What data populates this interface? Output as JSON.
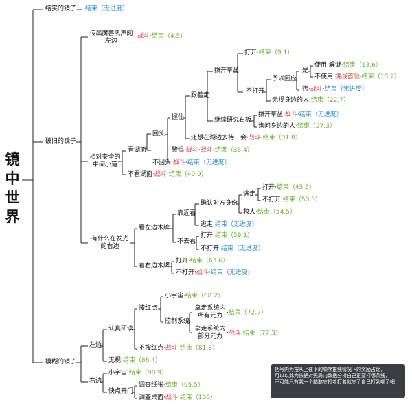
{
  "title": "镜中世界",
  "dot": "·",
  "labels": {
    "mirror1": "结实的镜子",
    "mirror2": "破旧的镜子",
    "mirror3": "模糊的镜子",
    "roar": "传出魔兽吼声的左边",
    "safe": "相对安全的中间小道",
    "glow": "有什么在发光的右边",
    "look_lake": "看湖面",
    "no_look_lake": "不看湖面",
    "turn_back": "回头",
    "no_turn_back": "不回头",
    "hold": "握住",
    "alert": "警惕",
    "follow": "跟着走",
    "think_lake": "还想在湖边多待一会",
    "push_grass": "拨开草丛",
    "study_stone": "继续研究石板",
    "push_grass2": "拨开草丛",
    "ask_side": "询问身边的人",
    "open": "打开",
    "not_open": "不打开",
    "respond": "予以回应",
    "ignore_side": "无视身边的人",
    "yes": "是",
    "no": "否",
    "use": "使用",
    "solve": "解谜",
    "not_use": "不使用",
    "challenge": "挑战首领",
    "left_sign": "看左边木牌",
    "right_sign": "看右边木牌",
    "approach": "靠近看",
    "not_go": "不去看",
    "confirm": "确认对方身份",
    "flee_top": "逃走",
    "save": "救人",
    "flee": "逃走",
    "open_a": "打开",
    "not_open_a": "不打开",
    "open_b": "打开",
    "not_open_b": "不打开",
    "open_c": "打开",
    "not_open_c": "不打开",
    "serious": "认真研读",
    "ignore": "无视",
    "left": "左边",
    "right": "右边",
    "press_red": "按红点",
    "no_press_red": "不按红点",
    "universe": "小宇宙",
    "control": "控制系统",
    "take_all": "拿走系统内所有元力",
    "take_part": "拿走系统内部分元力",
    "universe2": "小宇宙",
    "quick_open": "快点开门",
    "check_paper": "调查纸张",
    "check_desk": "调查桌面"
  },
  "outcomes": {
    "end": "结束",
    "fight": "战斗",
    "noprog": "（无进度）",
    "v45": "（4.5）",
    "v9_1": "（9.1）",
    "v13_6": "（13.6）",
    "v18_2": "（18.2）",
    "v22_7": "（22.7）",
    "v27_3": "（27.3）",
    "v31_8": "（31.8）",
    "v36_4": "（36.4）",
    "v40_9": "（40.9）",
    "v45_5": "（45.5）",
    "v50_0": "（50.0）",
    "v54_5": "（54.5）",
    "v59_1": "（59.1）",
    "v63_6": "（63.6）",
    "v68_2": "（68.2）",
    "v72_7": "（72.7）",
    "v77_3": "（77.3）",
    "v81_8": "（81.8）",
    "v86_4": "（86.4）",
    "v90_9": "（90.9）",
    "v95_5": "（95.5）",
    "v100": "（100）"
  },
  "note": {
    "line1": "括号内为按从上往下的顺序推线情况下的奖励占比，",
    "line2": "可以以此为依据对照局内数据分析自己正要打哪条线，",
    "line3": "不可能只有我一个憨憨忘打着打着就忘了自己打到哪了吧"
  },
  "colors": {
    "fight": "#e0403a",
    "end": "#6ab42a",
    "noprog": "#2b8fd6",
    "note_bg": "#3a3d42"
  }
}
